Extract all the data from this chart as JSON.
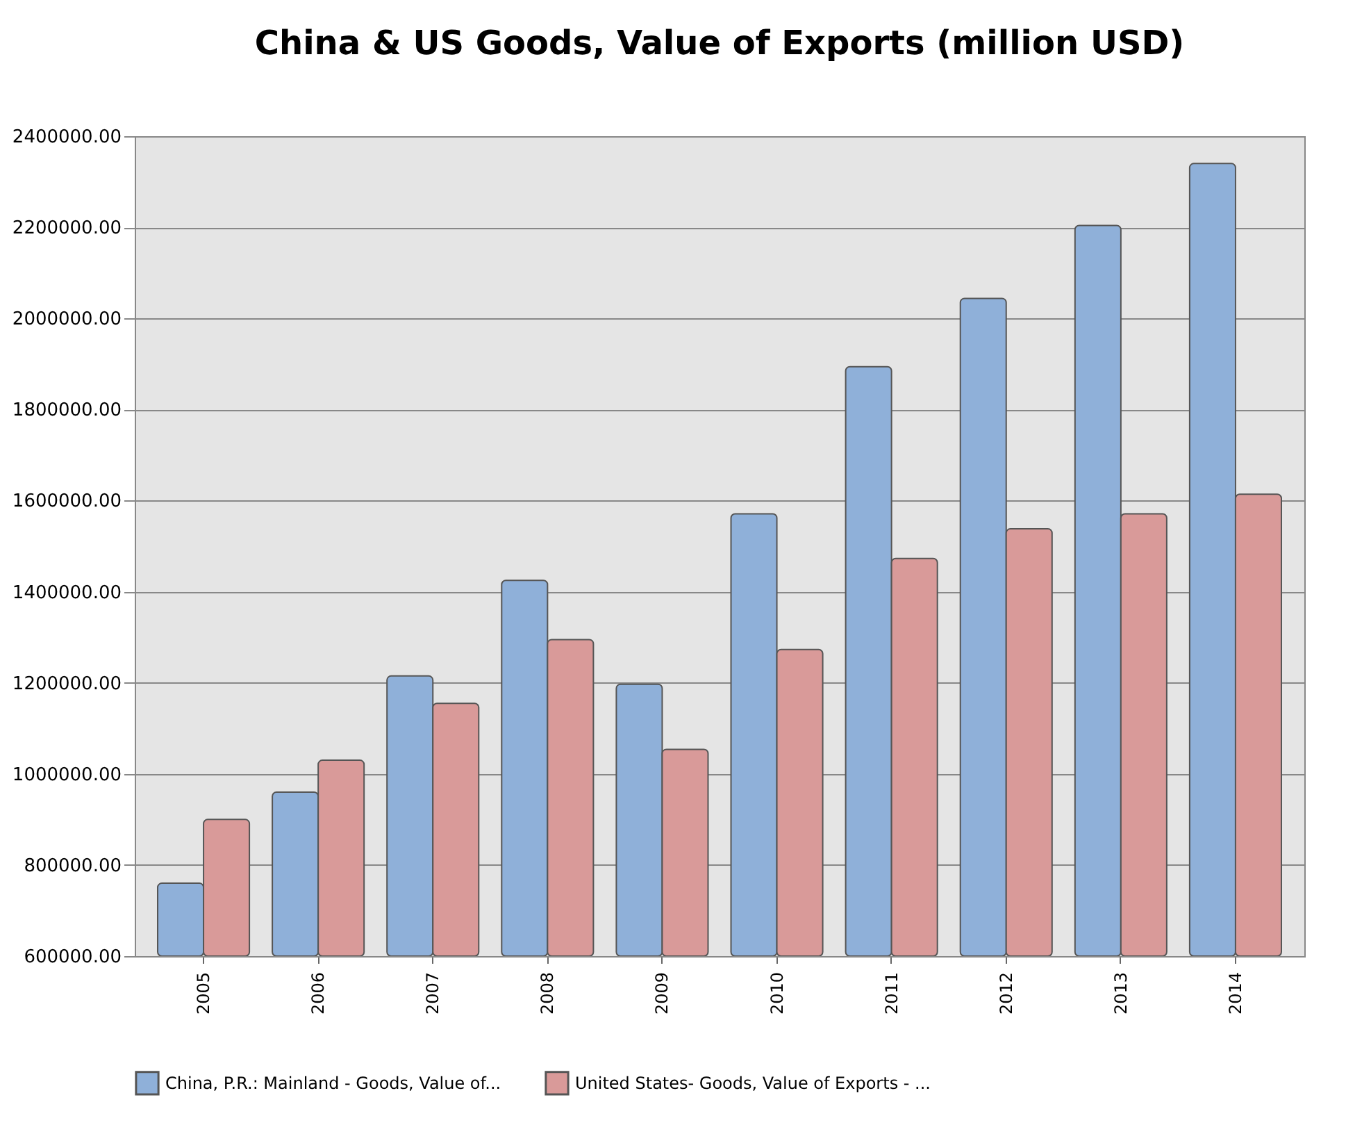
{
  "chart_data": {
    "type": "bar",
    "title": "China & US Goods, Value of Exports (million USD)",
    "categories": [
      "2005",
      "2006",
      "2007",
      "2008",
      "2009",
      "2010",
      "2011",
      "2012",
      "2013",
      "2014"
    ],
    "series": [
      {
        "name": "China, P.R.: Mainland - Goods, Value of...",
        "color": "#8fb0d9",
        "values": [
          760000,
          960000,
          1215000,
          1425000,
          1197000,
          1571000,
          1894000,
          2044000,
          2204000,
          2340000
        ]
      },
      {
        "name": "United States- Goods, Value of Exports - ...",
        "color": "#d99a99",
        "values": [
          900000,
          1030000,
          1155000,
          1295000,
          1054000,
          1273000,
          1473000,
          1538000,
          1571000,
          1614000
        ]
      }
    ],
    "ylim": [
      600000,
      2400000
    ],
    "yticks": [
      {
        "value": 600000,
        "label": "600000.00"
      },
      {
        "value": 800000,
        "label": "800000.00"
      },
      {
        "value": 1000000,
        "label": "1000000.00"
      },
      {
        "value": 1200000,
        "label": "1200000.00"
      },
      {
        "value": 1400000,
        "label": "1400000.00"
      },
      {
        "value": 1600000,
        "label": "1600000.00"
      },
      {
        "value": 1800000,
        "label": "1800000.00"
      },
      {
        "value": 2000000,
        "label": "2000000.00"
      },
      {
        "value": 2200000,
        "label": "2200000.00"
      },
      {
        "value": 2400000,
        "label": "2400000.00"
      }
    ],
    "grid": "y",
    "legend": "bottom left"
  }
}
